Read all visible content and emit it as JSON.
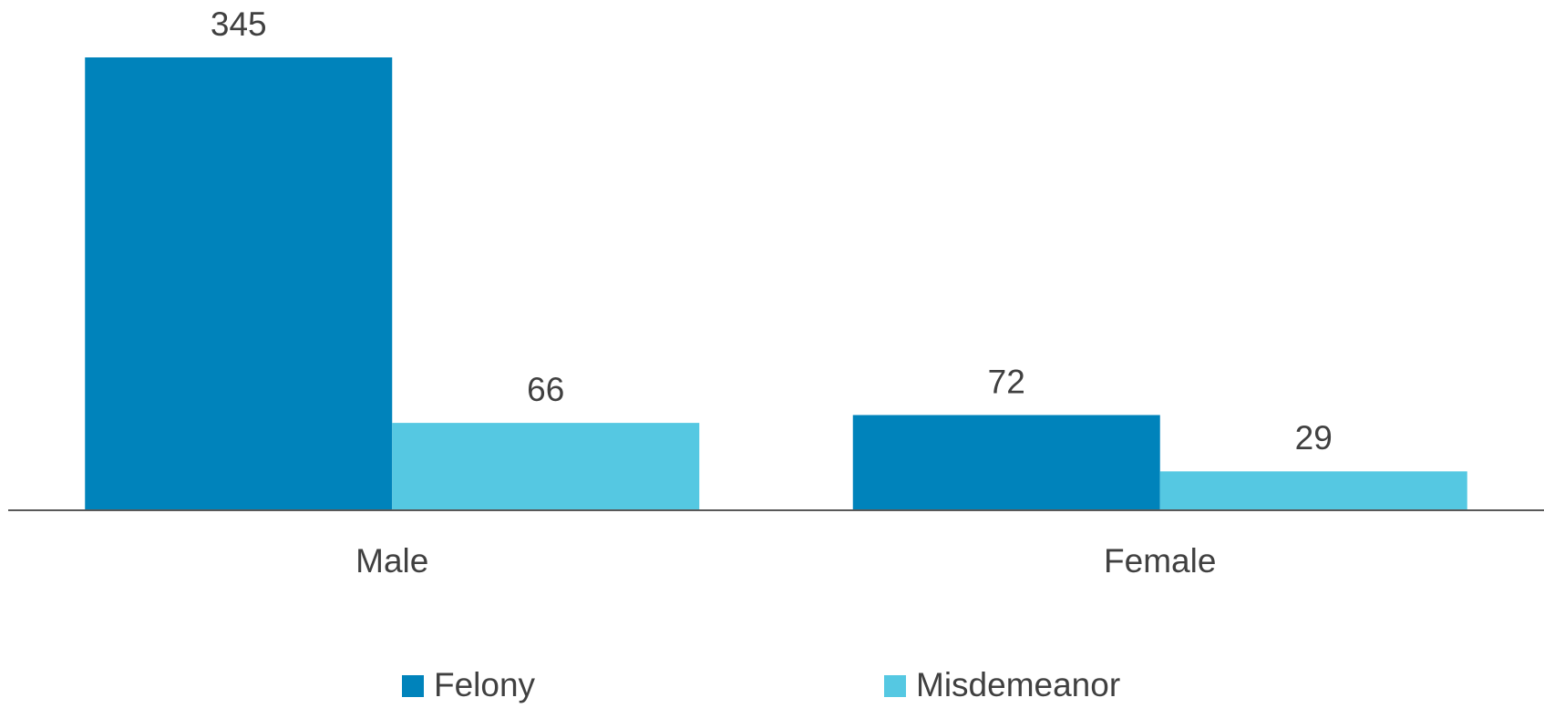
{
  "chart_data": {
    "type": "bar",
    "categories": [
      "Male",
      "Female"
    ],
    "series": [
      {
        "name": "Felony",
        "color": "#0083bb",
        "values": [
          345,
          72
        ]
      },
      {
        "name": "Misdemeanor",
        "color": "#55c8e2",
        "values": [
          66,
          29
        ]
      }
    ],
    "legend": "bottom"
  }
}
